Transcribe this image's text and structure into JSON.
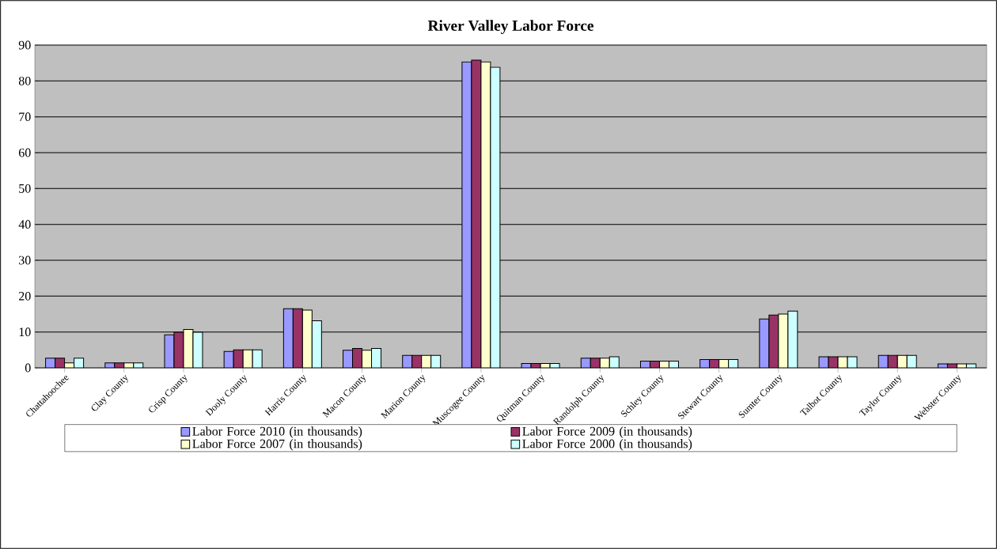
{
  "chart_data": {
    "type": "bar",
    "title": "River Valley Labor Force",
    "categories": [
      "Chattahoochee",
      "Clay County",
      "Crisp County",
      "Dooly County",
      "Harris County",
      "Macon County",
      "Marion County",
      "Muscogee County",
      "Quitman County",
      "Randolph County",
      "Schley County",
      "Stewart County",
      "Sumter County",
      "Talbot County",
      "Taylor County",
      "Webster County"
    ],
    "series": [
      {
        "name": "Labor Force 2010 (in thousands)",
        "color": "#9999ff",
        "values": [
          2.7,
          1.4,
          9.2,
          4.6,
          16.5,
          4.9,
          3.5,
          85.3,
          1.2,
          2.7,
          1.9,
          2.3,
          13.6,
          3.1,
          3.5,
          1.1
        ]
      },
      {
        "name": "Labor Force 2009 (in thousands)",
        "color": "#993366",
        "values": [
          2.7,
          1.4,
          9.9,
          5.0,
          16.5,
          5.4,
          3.5,
          85.8,
          1.2,
          2.7,
          1.9,
          2.3,
          14.7,
          3.1,
          3.5,
          1.1
        ]
      },
      {
        "name": "Labor Force 2007 (in thousands)",
        "color": "#ffffcc",
        "values": [
          1.4,
          1.4,
          10.7,
          5.0,
          16.1,
          4.9,
          3.5,
          85.3,
          1.2,
          2.7,
          1.9,
          2.3,
          15.0,
          3.1,
          3.5,
          1.1
        ]
      },
      {
        "name": "Labor Force 2000 (in thousands)",
        "color": "#ccffff",
        "values": [
          2.7,
          1.4,
          9.9,
          5.0,
          13.1,
          5.4,
          3.5,
          83.8,
          1.2,
          3.1,
          1.9,
          2.3,
          15.8,
          3.1,
          3.5,
          1.1
        ]
      }
    ],
    "ylim": [
      0,
      90
    ],
    "yticks": [
      0,
      10,
      20,
      30,
      40,
      50,
      60,
      70,
      80,
      90
    ],
    "grid": "y",
    "legend": "bottom"
  }
}
